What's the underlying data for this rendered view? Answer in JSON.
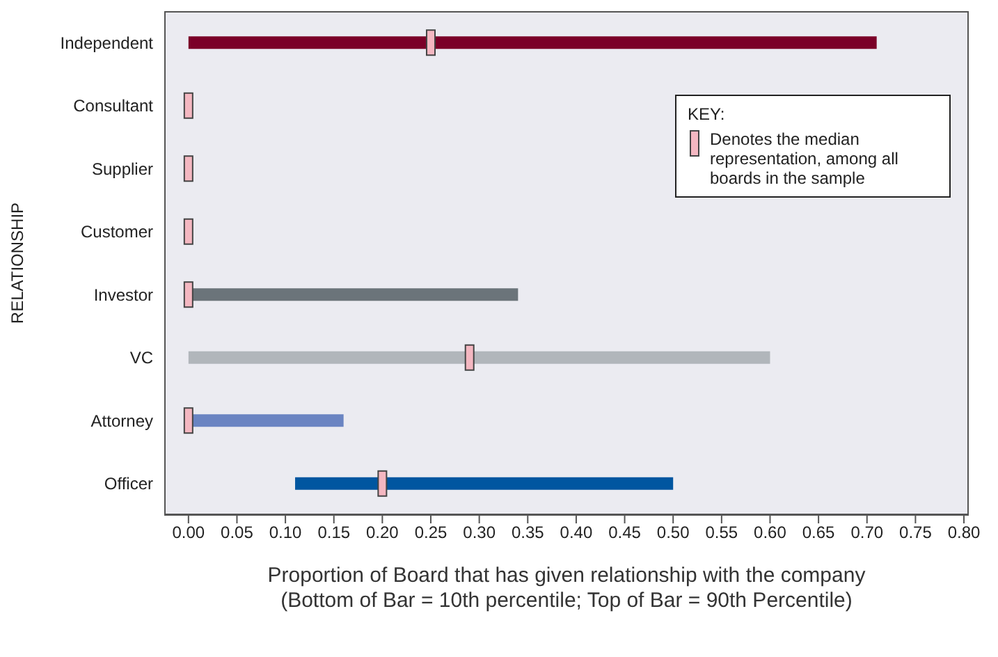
{
  "chart_data": {
    "type": "bar",
    "orientation": "horizontal",
    "ylabel": "RELATIONSHIP",
    "xlabel": "Proportion of Board that has given relationship with the company\n(Bottom of Bar = 10th percentile; Top of Bar = 90th Percentile)",
    "categories": [
      "Independent",
      "Consultant",
      "Supplier",
      "Customer",
      "Investor",
      "VC",
      "Attorney",
      "Officer"
    ],
    "series": [
      {
        "base": [
          0,
          null,
          null,
          null,
          0,
          0,
          0,
          0.11
        ],
        "colors": [
          "#7b0028",
          "#7b0028",
          "#7b0028",
          "#7b0028",
          "#6b747a",
          "#b1b6bb",
          "#6a84c2",
          "#0056a0"
        ],
        "values": [
          0.71,
          null,
          null,
          null,
          0.34,
          0.6,
          0.16,
          0.39
        ]
      },
      {
        "type": "scatter",
        "name": "Denotes the median representation, among all boards in the sample",
        "color": "#f4b7c1",
        "x": [
          "Independent",
          "Consultant",
          "Supplier",
          "Customer",
          "Investor",
          "VC",
          "Attorney",
          "Officer"
        ],
        "values": [
          0.25,
          0,
          0,
          0,
          0,
          0.29,
          0,
          0.2
        ]
      }
    ],
    "marker": "square",
    "legend": "top right",
    "legend_title": "KEY:",
    "grid": false,
    "xlim": [
      -0.025,
      0.805
    ],
    "xticks": [
      {
        "value": 0,
        "label": "0.00"
      },
      {
        "value": 0.05,
        "label": "0.05"
      },
      {
        "value": 0.1,
        "label": "0.10"
      },
      {
        "value": 0.15,
        "label": "0.15"
      },
      {
        "value": 0.2,
        "label": "0.20"
      },
      {
        "value": 0.25,
        "label": "0.25"
      },
      {
        "value": 0.3,
        "label": "0.30"
      },
      {
        "value": 0.35,
        "label": "0.35"
      },
      {
        "value": 0.4,
        "label": "0.40"
      },
      {
        "value": 0.45,
        "label": "0.45"
      },
      {
        "value": 0.5,
        "label": "0.50"
      },
      {
        "value": 0.55,
        "label": "0.55"
      },
      {
        "value": 0.6,
        "label": "0.60"
      },
      {
        "value": 0.65,
        "label": "0.65"
      },
      {
        "value": 0.7,
        "label": "0.70"
      },
      {
        "value": 0.75,
        "label": "0.75"
      },
      {
        "value": 0.8,
        "label": "0.80"
      }
    ]
  }
}
